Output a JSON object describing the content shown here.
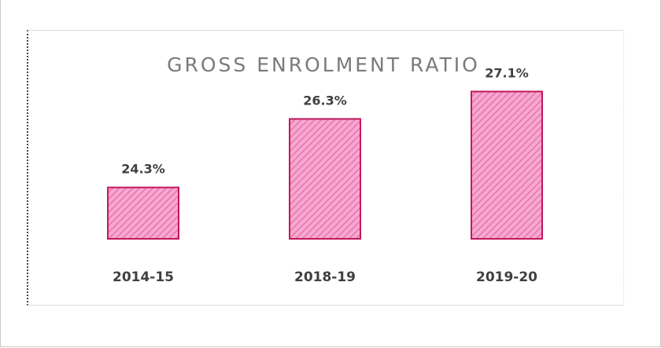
{
  "colors": {
    "bar_fill": "#f7a8cf",
    "bar_hatch": "#e46aa8",
    "bar_stroke": "#c2185b"
  },
  "chart_data": {
    "type": "bar",
    "title": "GROSS ENROLMENT RATIO",
    "categories": [
      "2014-15",
      "2018-19",
      "2019-20"
    ],
    "values": [
      24.3,
      26.3,
      27.1
    ],
    "data_labels": [
      "24.3%",
      "26.3%",
      "27.1%"
    ],
    "unit": "%",
    "xlabel": "",
    "ylabel": "",
    "y_axis_visible": false,
    "grid": false,
    "legend": "none"
  }
}
